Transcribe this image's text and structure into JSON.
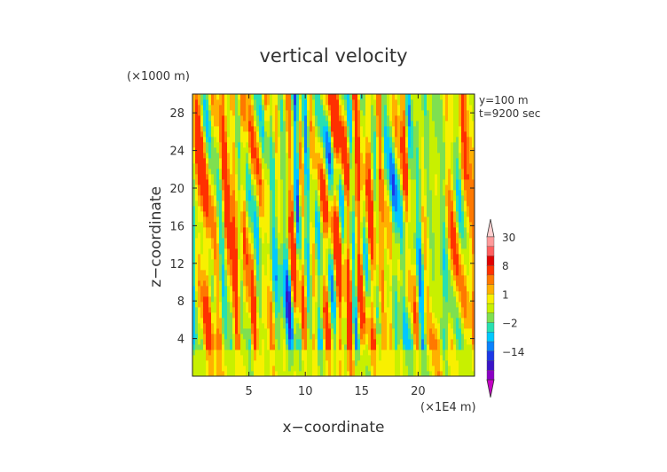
{
  "chart_data": {
    "type": "heatmap",
    "title": "vertical velocity",
    "xlabel": "x−coordinate",
    "ylabel": "z−coordinate",
    "x_multiplier": "(×1E4 m)",
    "y_multiplier": "(×1000 m)",
    "annotations": [
      "y=100 m",
      "t=9200 sec"
    ],
    "xlim": [
      0,
      25
    ],
    "ylim": [
      0,
      30
    ],
    "x_ticks": [
      5,
      10,
      15,
      20
    ],
    "x_tick_labels": [
      "5",
      "10",
      "15",
      "20"
    ],
    "y_ticks": [
      4,
      8,
      12,
      16,
      20,
      24,
      28
    ],
    "y_tick_labels": [
      "4",
      "8",
      "12",
      "16",
      "20",
      "24",
      "28"
    ],
    "colorbar": {
      "levels": [
        -20,
        -14,
        -8,
        -4,
        -2,
        -1,
        0,
        1,
        2,
        4,
        8,
        14,
        20,
        30
      ],
      "label_levels": [
        30,
        8,
        1,
        -2,
        -14
      ],
      "labels": [
        "30",
        "8",
        "1",
        "−2",
        "−14"
      ],
      "colors": [
        "#c400c4",
        "#8a00c4",
        "#3a14c8",
        "#1c38e8",
        "#0a82ff",
        "#00c8ff",
        "#28e0b0",
        "#7ee050",
        "#c8f000",
        "#f8f000",
        "#ffb000",
        "#ff7800",
        "#ff3000",
        "#e00000",
        "#ff6060",
        "#ff9a9a",
        "#ffd0d0"
      ],
      "extend": "both"
    },
    "grid": false
  }
}
